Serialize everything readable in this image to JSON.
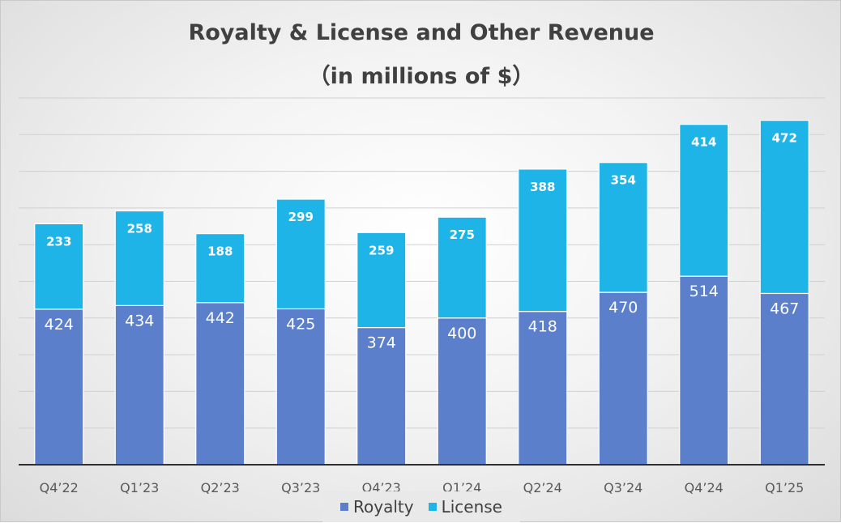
{
  "chart_data": {
    "type": "bar",
    "stacked": true,
    "title": "Royalty & License and Other Revenue",
    "subtitle": "（in millions of $）",
    "categories": [
      "Q4’22",
      "Q1’23",
      "Q2’23",
      "Q3’23",
      "Q4’23",
      "Q1’24",
      "Q2’24",
      "Q3’24",
      "Q4’24",
      "Q1’25"
    ],
    "series": [
      {
        "name": "Royalty",
        "color": "#5b7fca",
        "values": [
          424,
          434,
          442,
          425,
          374,
          400,
          418,
          470,
          514,
          467
        ]
      },
      {
        "name": "License",
        "color": "#1fb4e8",
        "values": [
          233,
          258,
          188,
          299,
          259,
          275,
          388,
          354,
          414,
          472
        ]
      }
    ],
    "ylim": [
      0,
      1000
    ],
    "grid": true,
    "legend": "bottom"
  }
}
